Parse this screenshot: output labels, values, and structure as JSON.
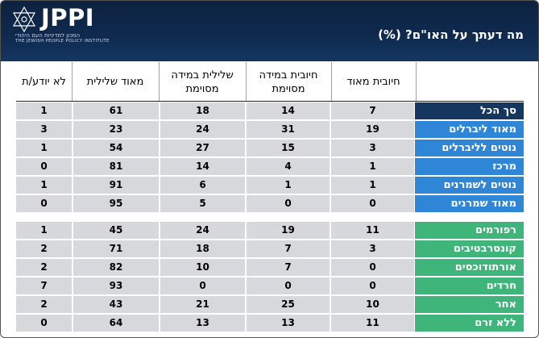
{
  "logo": {
    "name": "JPPI",
    "subtitle_he": "המכון למדיניות העם היהודי",
    "subtitle_en": "THE JEWISH PEOPLE POLICY INSTITUTE"
  },
  "title": "מה דעתך על האו\"ם? (%)",
  "columns": [
    "חיובית מאוד",
    "חיובית במידה מסוימת",
    "שלילית במידה מסוימת",
    "מאוד שלילית",
    "לא יודע/ת"
  ],
  "group1": [
    {
      "label": "סך הכל",
      "style": "total",
      "values": [
        "7",
        "14",
        "18",
        "61",
        "1"
      ]
    },
    {
      "label": "מאוד ליברלים",
      "style": "blue",
      "values": [
        "19",
        "31",
        "24",
        "23",
        "3"
      ]
    },
    {
      "label": "נוטים לליברלים",
      "style": "blue",
      "values": [
        "3",
        "15",
        "27",
        "54",
        "1"
      ]
    },
    {
      "label": "מרכז",
      "style": "blue",
      "values": [
        "1",
        "4",
        "14",
        "81",
        "0"
      ]
    },
    {
      "label": "נוטים לשמרנים",
      "style": "blue",
      "values": [
        "1",
        "1",
        "6",
        "91",
        "1"
      ]
    },
    {
      "label": "מאוד שמרנים",
      "style": "blue",
      "values": [
        "0",
        "0",
        "5",
        "95",
        "0"
      ]
    }
  ],
  "group2": [
    {
      "label": "רפורמים",
      "style": "green",
      "values": [
        "11",
        "19",
        "24",
        "45",
        "1"
      ]
    },
    {
      "label": "קונסרבטיבים",
      "style": "green",
      "values": [
        "3",
        "7",
        "18",
        "71",
        "2"
      ]
    },
    {
      "label": "אורתודוכסים",
      "style": "green",
      "values": [
        "0",
        "7",
        "10",
        "82",
        "2"
      ]
    },
    {
      "label": "חרדים",
      "style": "green",
      "values": [
        "0",
        "0",
        "0",
        "93",
        "7"
      ]
    },
    {
      "label": "אחר",
      "style": "green",
      "values": [
        "10",
        "25",
        "21",
        "43",
        "2"
      ]
    },
    {
      "label": "ללא זרם",
      "style": "green",
      "values": [
        "11",
        "13",
        "13",
        "64",
        "0"
      ]
    }
  ],
  "colors": {
    "header_bg": "#0f2a4f",
    "total_label": "#14365f",
    "blue_label": "#2f86d6",
    "green_label": "#3fb47b",
    "cell_bg": "#d6d8db"
  }
}
